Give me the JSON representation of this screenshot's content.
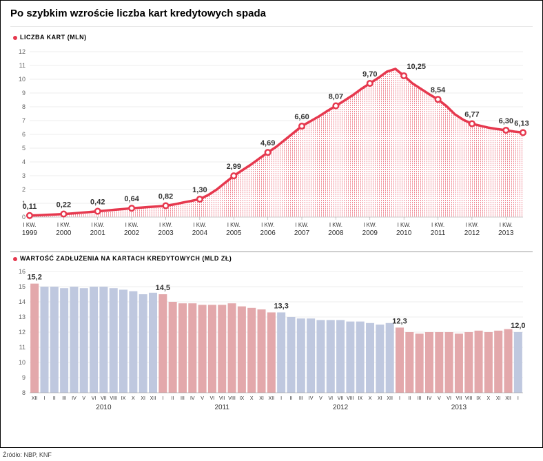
{
  "title": "Po szybkim wzroście liczba kart kredytowych spada",
  "source": "Źródło: NBP, KNF",
  "line_chart": {
    "type": "area-line",
    "title": "Liczba kart (mln)",
    "ylim": [
      0,
      12
    ],
    "ytick_step": 1,
    "line_color": "#e6384e",
    "line_width": 3.5,
    "point_fill": "#ffffff",
    "point_stroke": "#e6384e",
    "area_color": "#e6384e",
    "background": "#ffffff",
    "grid_color": "#dddddd",
    "x_labels_top": [
      "I KW.",
      "I KW.",
      "I KW.",
      "I KW.",
      "I KW.",
      "I KW.",
      "I KW.",
      "I KW.",
      "I KW.",
      "I KW.",
      "I KW.",
      "I KW.",
      "I KW.",
      "I KW.",
      "I KW."
    ],
    "x_labels_bottom": [
      "1999",
      "2000",
      "2001",
      "2002",
      "2003",
      "2004",
      "2005",
      "2006",
      "2007",
      "2008",
      "2009",
      "2010",
      "2011",
      "2012",
      "2013"
    ],
    "labeled_points": [
      {
        "idx": 0,
        "value": 0.11,
        "txt": "0,11"
      },
      {
        "idx": 4,
        "value": 0.22,
        "txt": "0,22"
      },
      {
        "idx": 8,
        "value": 0.42,
        "txt": "0,42"
      },
      {
        "idx": 12,
        "value": 0.64,
        "txt": "0,64"
      },
      {
        "idx": 16,
        "value": 0.82,
        "txt": "0,82"
      },
      {
        "idx": 20,
        "value": 1.3,
        "txt": "1,30"
      },
      {
        "idx": 24,
        "value": 2.99,
        "txt": "2,99"
      },
      {
        "idx": 28,
        "value": 4.69,
        "txt": "4,69"
      },
      {
        "idx": 32,
        "value": 6.6,
        "txt": "6,60"
      },
      {
        "idx": 36,
        "value": 8.07,
        "txt": "8,07"
      },
      {
        "idx": 40,
        "value": 9.7,
        "txt": "9,70"
      },
      {
        "idx": 44,
        "value": 10.25,
        "txt": "10,25"
      },
      {
        "idx": 48,
        "value": 8.54,
        "txt": "8,54"
      },
      {
        "idx": 52,
        "value": 6.77,
        "txt": "6,77"
      },
      {
        "idx": 56,
        "value": 6.3,
        "txt": "6,30"
      },
      {
        "idx": 58,
        "value": 6.13,
        "txt": "6,13"
      }
    ],
    "all_values": [
      0.11,
      0.13,
      0.16,
      0.19,
      0.22,
      0.26,
      0.31,
      0.36,
      0.42,
      0.47,
      0.53,
      0.58,
      0.64,
      0.68,
      0.73,
      0.77,
      0.82,
      0.92,
      1.05,
      1.17,
      1.3,
      1.6,
      2.0,
      2.5,
      2.99,
      3.4,
      3.8,
      4.25,
      4.69,
      5.1,
      5.6,
      6.1,
      6.6,
      6.95,
      7.3,
      7.7,
      8.07,
      8.45,
      8.85,
      9.3,
      9.7,
      10.1,
      10.55,
      10.75,
      10.25,
      9.7,
      9.3,
      8.9,
      8.54,
      8.05,
      7.45,
      7.05,
      6.77,
      6.62,
      6.48,
      6.38,
      6.3,
      6.2,
      6.13
    ]
  },
  "bar_chart": {
    "type": "bar",
    "title": "Wartość zadłużenia na kartach kredytowych (mld zł)",
    "ylim": [
      8,
      16
    ],
    "ytick_step": 1,
    "bar_color_odd_year": "#e3a8ab",
    "bar_color_even_year": "#bfc8df",
    "highlight_color": "#e6384e",
    "grid_color": "#e0e0e0",
    "background": "#ffffff",
    "months": [
      "XII",
      "I",
      "II",
      "III",
      "IV",
      "V",
      "VI",
      "VII",
      "VIII",
      "IX",
      "X",
      "XI",
      "XII",
      "I",
      "II",
      "III",
      "IV",
      "V",
      "VI",
      "VII",
      "VIII",
      "IX",
      "X",
      "XI",
      "XII",
      "I",
      "II",
      "III",
      "IV",
      "V",
      "VI",
      "VII",
      "VIII",
      "IX",
      "X",
      "XI",
      "XII",
      "I",
      "II",
      "III",
      "IV",
      "V",
      "VI",
      "VII",
      "VIII",
      "IX",
      "X",
      "XI",
      "XII",
      "I"
    ],
    "year_labels": [
      "2010",
      "2011",
      "2012",
      "2013"
    ],
    "year_positions": [
      7,
      19,
      31,
      43
    ],
    "values": [
      15.2,
      15.0,
      15.0,
      14.9,
      15.0,
      14.9,
      15.0,
      15.0,
      14.9,
      14.8,
      14.7,
      14.5,
      14.6,
      14.5,
      14.0,
      13.9,
      13.9,
      13.8,
      13.8,
      13.8,
      13.9,
      13.7,
      13.6,
      13.5,
      13.3,
      13.3,
      13.0,
      12.9,
      12.9,
      12.8,
      12.8,
      12.8,
      12.7,
      12.7,
      12.6,
      12.5,
      12.6,
      12.3,
      12.0,
      11.9,
      12.0,
      12.0,
      12.0,
      11.9,
      12.0,
      12.1,
      12.0,
      12.1,
      12.2,
      12.0
    ],
    "labeled": [
      {
        "i": 0,
        "value": 15.2,
        "txt": "15,2"
      },
      {
        "i": 13,
        "value": 14.5,
        "txt": "14,5"
      },
      {
        "i": 25,
        "value": 13.3,
        "txt": "13,3"
      },
      {
        "i": 37,
        "value": 12.3,
        "txt": "12,3"
      },
      {
        "i": 49,
        "value": 12.0,
        "txt": "12,0"
      }
    ],
    "year_groups": [
      [
        0,
        0
      ],
      [
        1,
        12
      ],
      [
        13,
        24
      ],
      [
        25,
        36
      ],
      [
        37,
        48
      ],
      [
        49,
        49
      ]
    ]
  }
}
